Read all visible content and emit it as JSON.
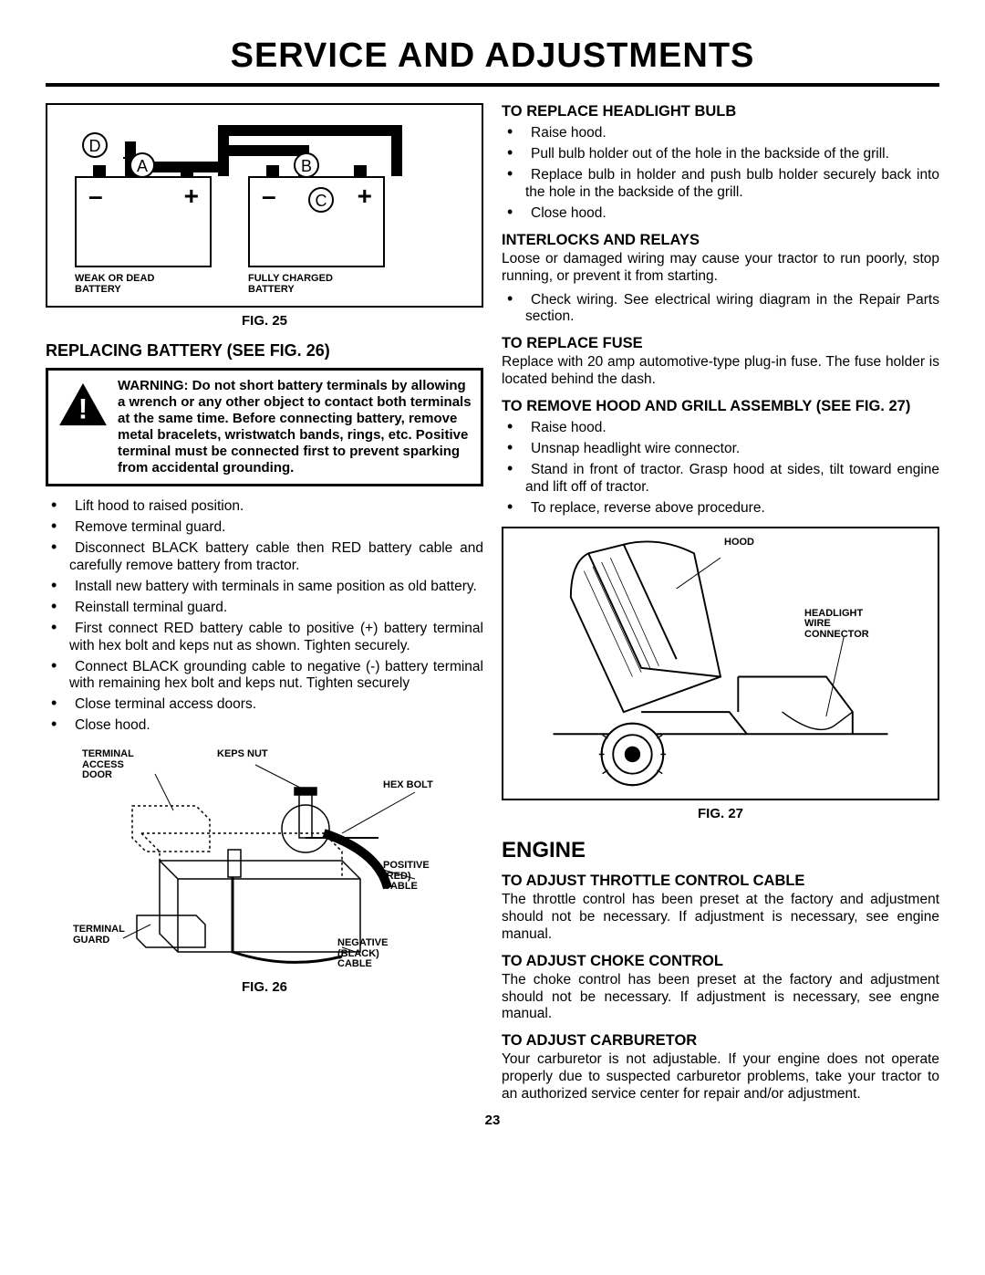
{
  "page": {
    "title": "Service and Adjustments",
    "page_number": "23"
  },
  "fig25": {
    "caption": "FIG. 25",
    "labels": {
      "A": "A",
      "B": "B",
      "C": "C",
      "D": "D"
    },
    "left_battery_label": "WEAK OR DEAD\nBATTERY",
    "right_battery_label": "FULLY CHARGED\nBATTERY",
    "signs": {
      "minus": "–",
      "plus": "+"
    }
  },
  "left_col": {
    "replacing_battery_heading": "REPLACING BATTERY (See Fig. 26)",
    "warning_text": "WARNING:  Do not short battery terminals by allowing a wrench or any other object to contact both terminals at the same time. Before connecting battery, remove metal bracelets, wristwatch bands, rings, etc. Positive terminal must be connected first to prevent sparking from accidental grounding.",
    "battery_steps": [
      "Lift hood to raised position.",
      "Remove terminal guard.",
      "Disconnect BLACK battery cable then RED battery cable and carefully remove battery from tractor.",
      "Install new battery with terminals in same position as old battery.",
      "Reinstall terminal guard.",
      "First connect RED battery cable to positive (+) battery terminal with hex bolt and keps nut as shown. Tighten securely.",
      "Connect BLACK grounding cable to negative (-) battery terminal with remaining hex bolt and keps nut. Tighten securely",
      "Close terminal access doors.",
      "Close hood."
    ]
  },
  "fig26": {
    "caption": "FIG. 26",
    "labels": {
      "terminal_access_door": "TERMINAL\nACCESS\nDOOR",
      "keps_nut": "KEPS NUT",
      "hex_bolt": "HEX BOLT",
      "positive_cable": "POSITIVE\n(RED)\nCABLE",
      "terminal_guard": "TERMINAL\nGUARD",
      "negative_cable": "NEGATIVE\n(BLACK)\nCABLE"
    }
  },
  "right_col": {
    "headlight": {
      "heading": "To Replace Headlight Bulb",
      "steps": [
        "Raise hood.",
        "Pull bulb holder out of the hole in the backside of the grill.",
        "Replace bulb in holder and push bulb holder securely back into the hole in the backside of the grill.",
        "Close hood."
      ]
    },
    "interlocks": {
      "heading": "Interlocks and Relays",
      "body": "Loose or damaged wiring may cause your tractor to run poorly, stop running, or prevent it from starting.",
      "steps": [
        "Check wiring.  See electrical wiring diagram in the Repair Parts section."
      ]
    },
    "fuse": {
      "heading": "To Replace Fuse",
      "body": "Replace with 20 amp automotive-type plug-in fuse.  The fuse holder is located behind the dash."
    },
    "hood": {
      "heading": "To Remove Hood and Grill Assembly (See Fig. 27)",
      "steps": [
        "Raise hood.",
        "Unsnap headlight wire connector.",
        "Stand in front of tractor. Grasp hood at sides, tilt toward engine and lift off of tractor.",
        "To replace, reverse above procedure."
      ]
    },
    "engine_heading": "Engine",
    "throttle": {
      "heading": "To Adjust Throttle Control Cable",
      "body": "The throttle control has been preset at the factory and adjustment should not be necessary. If adjustment is necessary, see engine manual."
    },
    "choke": {
      "heading": "To Adjust Choke Control",
      "body": "The choke control has been preset at the factory and adjustment should not be necessary. If adjustment is necessary, see engne manual."
    },
    "carb": {
      "heading": "To Adjust Carburetor",
      "body": "Your carburetor is not adjustable. If your engine does not operate properly due to suspected carburetor problems, take your tractor to an authorized service center for repair and/or adjustment."
    }
  },
  "fig27": {
    "caption": "FIG. 27",
    "labels": {
      "hood": "HOOD",
      "connector": "HEADLIGHT\nWIRE\nCONNECTOR"
    }
  },
  "colors": {
    "text": "#000000",
    "bg": "#ffffff",
    "border": "#000000"
  }
}
